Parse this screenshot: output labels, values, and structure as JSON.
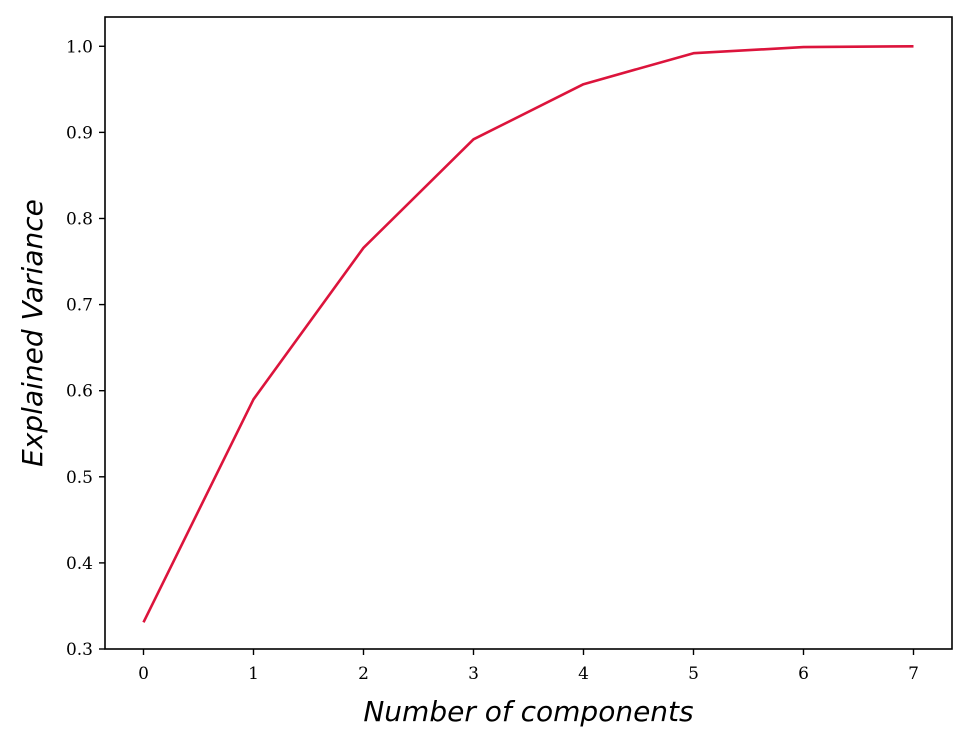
{
  "chart_data": {
    "type": "line",
    "title": "",
    "xlabel": "Number of components",
    "ylabel": "Explained Variance",
    "xlim": [
      -0.35,
      7.35
    ],
    "ylim": [
      0.3,
      1.034
    ],
    "xticks": [
      0,
      1,
      2,
      3,
      4,
      5,
      6,
      7
    ],
    "xtick_labels": [
      "0",
      "1",
      "2",
      "3",
      "4",
      "5",
      "6",
      "7"
    ],
    "yticks": [
      0.3,
      0.4,
      0.5,
      0.6,
      0.7,
      0.8,
      0.9,
      1.0
    ],
    "ytick_labels": [
      "0.3",
      "0.4",
      "0.5",
      "0.6",
      "0.7",
      "0.8",
      "0.9",
      "1.0"
    ],
    "grid": false,
    "series": [
      {
        "color": "#dc143c",
        "x": [
          0,
          1,
          2,
          3,
          4,
          5,
          6,
          7
        ],
        "values": [
          0.331,
          0.59,
          0.766,
          0.892,
          0.956,
          0.992,
          0.999,
          1.0
        ]
      }
    ]
  }
}
